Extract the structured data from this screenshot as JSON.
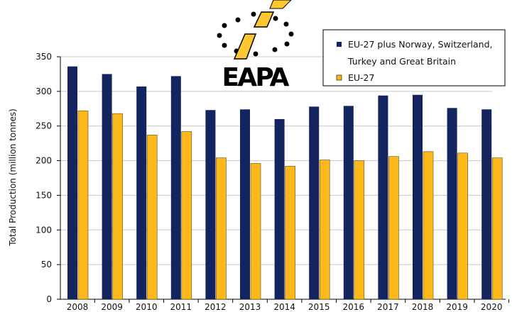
{
  "logo": {
    "text": "EAPA"
  },
  "chart_data": {
    "type": "bar",
    "title": "",
    "xlabel": "",
    "ylabel": "Total Production (million tonnes)",
    "ylim": [
      0,
      350
    ],
    "yticks": [
      0,
      50,
      100,
      150,
      200,
      250,
      300,
      350
    ],
    "grid": true,
    "legend_placement": "top-right",
    "categories": [
      "2008",
      "2009",
      "2010",
      "2011",
      "2012",
      "2013",
      "2014",
      "2015",
      "2016",
      "2017",
      "2018",
      "2019",
      "2020"
    ],
    "series": [
      {
        "name": "EU-27 plus Norway, Switzerland, Turkey and Great Britain",
        "legend_lines": [
          "EU-27 plus  Norway, Switzerland,",
          "Turkey and  Great  Britain"
        ],
        "color": "#13245f",
        "values": [
          336,
          325,
          307,
          322,
          273,
          274,
          260,
          278,
          279,
          294,
          295,
          276,
          274
        ]
      },
      {
        "name": "EU-27",
        "legend_lines": [
          "EU-27"
        ],
        "color": "#fdb91c",
        "values": [
          272,
          268,
          237,
          242,
          204,
          196,
          192,
          201,
          200,
          206,
          213,
          211,
          204
        ]
      }
    ]
  }
}
